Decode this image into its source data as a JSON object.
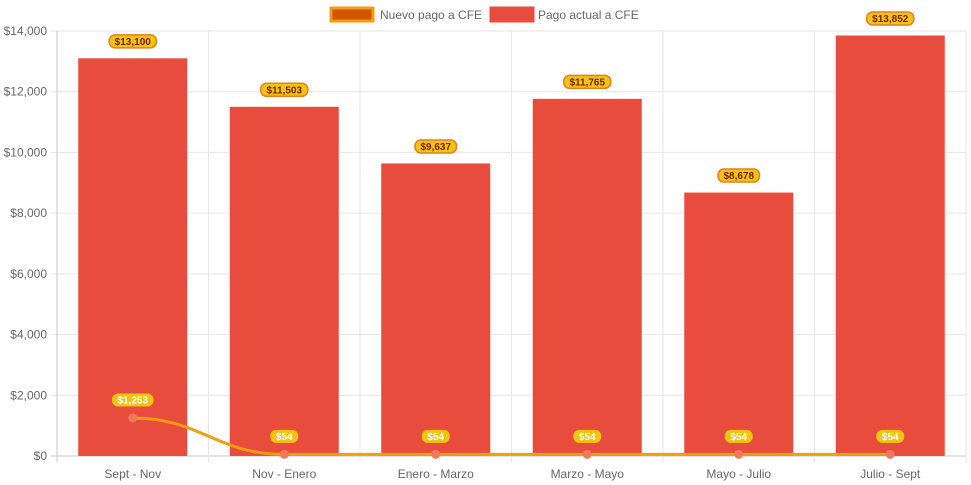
{
  "chart_data": {
    "type": "bar",
    "categories": [
      "Sept - Nov",
      "Nov - Enero",
      "Enero - Marzo",
      "Marzo - Mayo",
      "Mayo - Julio",
      "Julio - Sept"
    ],
    "series": [
      {
        "name": "Nuevo pago a CFE",
        "kind": "line",
        "values": [
          1253,
          54,
          54,
          54,
          54,
          54
        ],
        "labels": [
          "$1,253",
          "$54",
          "$54",
          "$54",
          "$54",
          "$54"
        ],
        "color": "#f39c12",
        "legend_fill": "#d35400",
        "point_color": "#f07a5a",
        "label_bg": "#f1c40f"
      },
      {
        "name": "Pago actual a CFE",
        "kind": "bar",
        "values": [
          13100,
          11503,
          9637,
          11765,
          8678,
          13852
        ],
        "labels": [
          "$13,100",
          "$11,503",
          "$9,637",
          "$11,765",
          "$8,678",
          "$13,852"
        ],
        "color": "#e74c3c",
        "label_bg": "#f1c40f",
        "label_border": "#e67e22"
      }
    ],
    "yticks": [
      {
        "value": 0,
        "label": "$0"
      },
      {
        "value": 2000,
        "label": "$2,000"
      },
      {
        "value": 4000,
        "label": "$4,000"
      },
      {
        "value": 6000,
        "label": "$6,000"
      },
      {
        "value": 8000,
        "label": "$8,000"
      },
      {
        "value": 10000,
        "label": "$10,000"
      },
      {
        "value": 12000,
        "label": "$12,000"
      },
      {
        "value": 14000,
        "label": "$14,000"
      }
    ],
    "ylim": [
      0,
      14000
    ],
    "grid": true,
    "legend_position": "top-center",
    "title": "",
    "xlabel": "",
    "ylabel": ""
  }
}
